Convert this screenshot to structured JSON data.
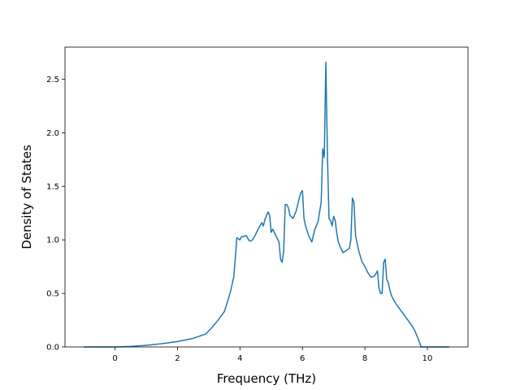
{
  "chart_data": {
    "type": "line",
    "title": "",
    "xlabel": "Frequency (THz)",
    "ylabel": "Density of States",
    "xlim": [
      -1.6,
      11.3
    ],
    "ylim": [
      0,
      2.8
    ],
    "x_ticks": [
      0,
      2,
      4,
      6,
      8,
      10
    ],
    "y_ticks": [
      0.0,
      0.5,
      1.0,
      1.5,
      2.0,
      2.5
    ],
    "x_tick_labels": [
      "0",
      "2",
      "4",
      "6",
      "8",
      "10"
    ],
    "y_tick_labels": [
      "0.0",
      "0.5",
      "1.0",
      "1.5",
      "2.0",
      "2.5"
    ],
    "grid": false,
    "series": [
      {
        "color": "#1f77b4",
        "x": [
          -1.0,
          -0.5,
          0.0,
          0.5,
          1.0,
          1.5,
          2.0,
          2.5,
          2.9,
          3.1,
          3.3,
          3.5,
          3.6,
          3.7,
          3.8,
          3.85,
          3.9,
          4.0,
          4.05,
          4.1,
          4.2,
          4.3,
          4.35,
          4.4,
          4.5,
          4.6,
          4.7,
          4.75,
          4.8,
          4.9,
          4.95,
          5.0,
          5.05,
          5.1,
          5.2,
          5.25,
          5.3,
          5.35,
          5.4,
          5.45,
          5.5,
          5.55,
          5.6,
          5.7,
          5.8,
          5.9,
          5.95,
          6.0,
          6.05,
          6.1,
          6.2,
          6.3,
          6.35,
          6.4,
          6.5,
          6.6,
          6.65,
          6.7,
          6.75,
          6.8,
          6.85,
          6.9,
          6.95,
          7.0,
          7.05,
          7.1,
          7.15,
          7.2,
          7.3,
          7.4,
          7.5,
          7.55,
          7.6,
          7.65,
          7.7,
          7.8,
          7.9,
          8.0,
          8.1,
          8.2,
          8.3,
          8.4,
          8.45,
          8.5,
          8.55,
          8.6,
          8.65,
          8.7,
          8.75,
          8.8,
          8.85,
          8.9,
          9.0,
          9.2,
          9.4,
          9.5,
          9.6,
          9.7,
          9.8,
          10.0,
          10.5,
          10.7
        ],
        "y": [
          0.0,
          0.0,
          0.0,
          0.005,
          0.015,
          0.03,
          0.05,
          0.08,
          0.12,
          0.18,
          0.25,
          0.33,
          0.42,
          0.52,
          0.65,
          0.82,
          1.02,
          1.0,
          1.03,
          1.03,
          1.04,
          0.99,
          0.99,
          1.0,
          1.05,
          1.11,
          1.16,
          1.13,
          1.19,
          1.26,
          1.23,
          1.07,
          1.1,
          1.07,
          1.01,
          0.98,
          0.82,
          0.79,
          0.9,
          1.33,
          1.33,
          1.3,
          1.23,
          1.2,
          1.27,
          1.39,
          1.44,
          1.46,
          1.2,
          1.13,
          1.04,
          0.98,
          1.04,
          1.1,
          1.17,
          1.35,
          1.85,
          1.77,
          2.66,
          1.8,
          1.2,
          1.18,
          1.13,
          1.22,
          1.18,
          1.06,
          0.98,
          0.94,
          0.88,
          0.9,
          0.92,
          1.0,
          1.39,
          1.35,
          1.04,
          0.9,
          0.8,
          0.75,
          0.69,
          0.65,
          0.66,
          0.71,
          0.55,
          0.5,
          0.5,
          0.79,
          0.82,
          0.63,
          0.6,
          0.53,
          0.48,
          0.45,
          0.4,
          0.32,
          0.24,
          0.2,
          0.15,
          0.08,
          0.0,
          0.0,
          0.0,
          0.0
        ]
      }
    ]
  }
}
